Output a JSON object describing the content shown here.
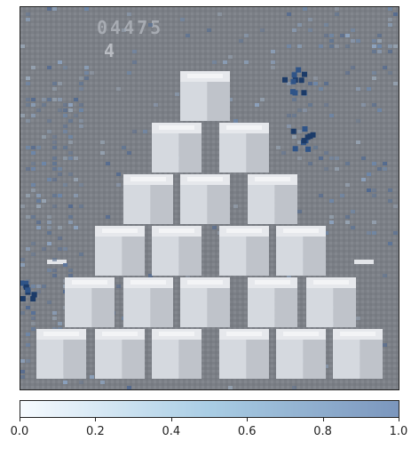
{
  "frame": {
    "background_color": "#7b7f86",
    "score_text": "04475",
    "lives_text": "4"
  },
  "colorbar": {
    "colormap_start": "#f7fbff",
    "colormap_mid": "#a9cde4",
    "colormap_end": "#7b96bd",
    "min": 0.0,
    "max": 1.0,
    "ticks": [
      "0.0",
      "0.2",
      "0.4",
      "0.6",
      "0.8",
      "1.0"
    ]
  }
}
